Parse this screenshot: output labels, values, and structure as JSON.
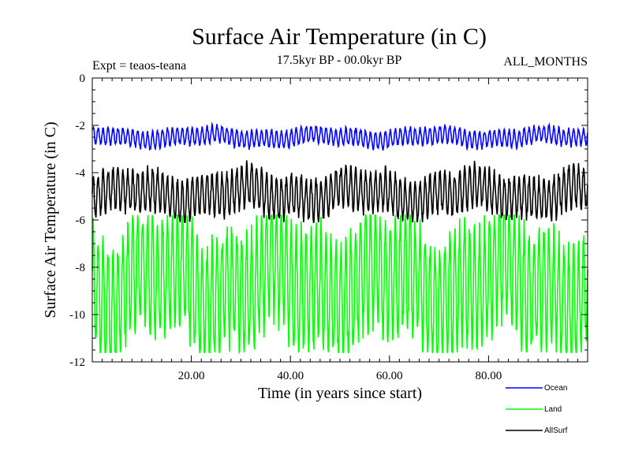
{
  "chart_data": {
    "type": "line",
    "title": "Surface Air Temperature (in C)",
    "subtitle": "17.5kyr BP - 00.0kyr BP",
    "experiment_label": "Expt = teaos-teana",
    "months_label": "ALL_MONTHS",
    "xlabel": "Time (in years since start)",
    "ylabel": "Surface Air Temperature (in C)",
    "xlim": [
      0,
      100
    ],
    "ylim": [
      -12,
      0
    ],
    "x_ticks": [
      20,
      40,
      60,
      80
    ],
    "x_tick_labels": [
      "20.00",
      "40.00",
      "60.00",
      "80.00"
    ],
    "y_ticks": [
      0,
      -2,
      -4,
      -6,
      -8,
      -10,
      -12
    ],
    "y_tick_labels": [
      "0",
      "-2",
      "-4",
      "-6",
      "-8",
      "-10",
      "-12"
    ],
    "series": [
      {
        "name": "Ocean",
        "color": "#0000ff",
        "mean": -2.5,
        "amplitude": 0.35,
        "min": -3.3,
        "max": -1.7
      },
      {
        "name": "Land",
        "color": "#00ff00",
        "mean": -8.7,
        "amplitude": 2.4,
        "min": -11.6,
        "max": -5.8
      },
      {
        "name": "AllSurf",
        "color": "#000000",
        "mean": -4.9,
        "amplitude": 0.85,
        "min": -6.1,
        "max": -3.2
      }
    ],
    "legend": [
      "Ocean",
      "Land",
      "AllSurf"
    ],
    "legend_position": "bottom-right"
  }
}
